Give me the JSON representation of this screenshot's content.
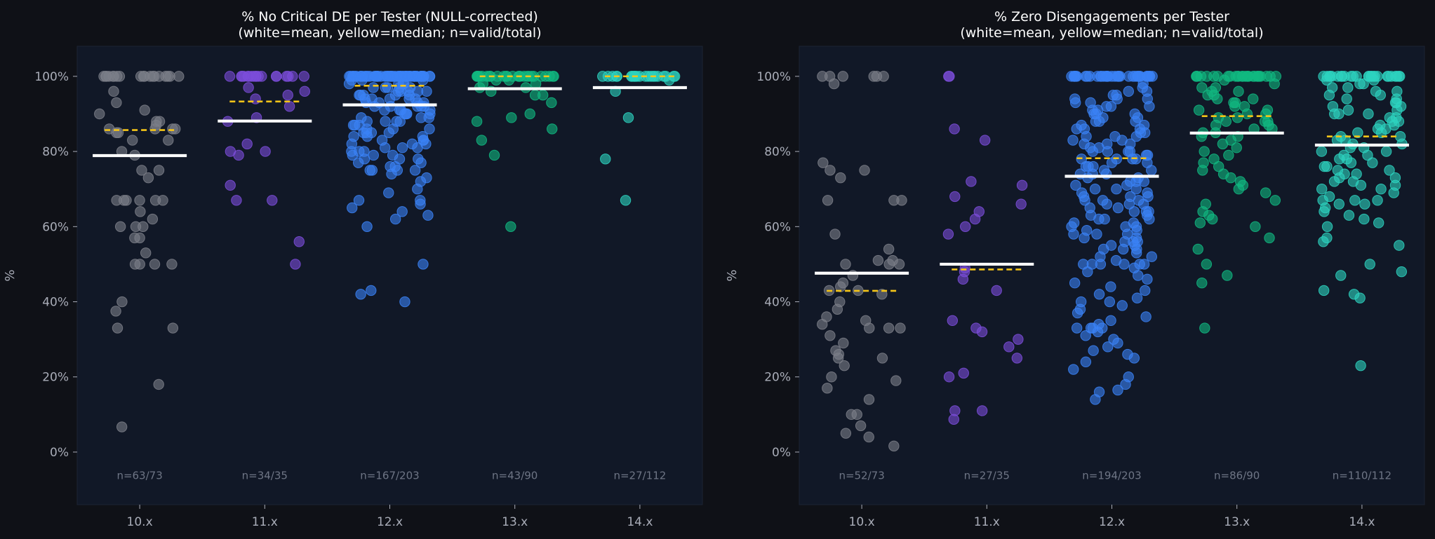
{
  "colors": {
    "page_bg": "#0f1117",
    "plot_bg": "#111827",
    "mean": "#ffffff",
    "median": "#f5c518",
    "text": "#a9adb8",
    "n_text": "#6e7585",
    "groups": [
      "#7c7f88",
      "#7c4ddb",
      "#3b82f6",
      "#10b981",
      "#2dd4bf"
    ]
  },
  "chart_data": [
    {
      "type": "scatter",
      "title": "% No Critical DE per Tester (NULL-corrected)",
      "subtitle": "(white=mean, yellow=median; n=valid/total)",
      "ylabel": "%",
      "ylim": [
        -14,
        108
      ],
      "yticks": [
        0,
        20,
        40,
        60,
        80,
        100
      ],
      "ytick_labels": [
        "0%",
        "20%",
        "40%",
        "60%",
        "80%",
        "100%"
      ],
      "categories": [
        "10.x",
        "11.x",
        "12.x",
        "13.x",
        "14.x"
      ],
      "groups": [
        {
          "name": "10.x",
          "n_label": "n=63/73",
          "valid": 63,
          "mean": 78.9,
          "median": 85.7,
          "values": [
            100,
            100,
            100,
            100,
            100,
            100,
            100,
            100,
            100,
            100,
            100,
            100,
            100,
            100,
            100,
            100,
            100,
            100,
            100,
            96,
            93,
            91,
            90,
            88,
            87,
            86,
            86,
            86,
            85,
            85,
            83,
            83,
            80,
            79,
            75,
            75,
            73,
            67,
            67,
            67,
            67,
            67,
            67,
            64,
            62,
            60,
            60,
            60,
            57,
            57,
            53,
            50,
            50,
            50,
            50,
            40,
            37.5,
            33,
            33,
            18,
            6.7,
            86,
            88
          ]
        },
        {
          "name": "11.x",
          "n_label": "n=34/35",
          "valid": 34,
          "mean": 88.1,
          "median": 93.3,
          "values": [
            100,
            100,
            100,
            100,
            100,
            100,
            100,
            100,
            100,
            100,
            100,
            100,
            100,
            100,
            100,
            100,
            100,
            100,
            97,
            96,
            95,
            94,
            92,
            89,
            88,
            82,
            80,
            80,
            79,
            71,
            67,
            67,
            56,
            50
          ]
        },
        {
          "name": "12.x",
          "n_label": "n=167/203",
          "valid": 167,
          "mean": 92.4,
          "median": 97.5,
          "values": [
            100,
            100,
            100,
            100,
            100,
            100,
            100,
            100,
            100,
            100,
            100,
            100,
            100,
            100,
            100,
            100,
            100,
            100,
            100,
            100,
            100,
            100,
            100,
            100,
            100,
            100,
            100,
            100,
            100,
            100,
            100,
            100,
            100,
            100,
            100,
            100,
            100,
            100,
            100,
            100,
            100,
            100,
            100,
            100,
            100,
            100,
            100,
            100,
            100,
            100,
            100,
            100,
            100,
            100,
            100,
            100,
            100,
            100,
            100,
            100,
            99,
            99,
            98,
            98,
            98,
            97,
            97,
            97,
            97,
            96,
            96,
            96,
            96,
            95,
            95,
            95,
            95,
            94,
            94,
            94,
            94,
            93,
            93,
            93,
            92,
            92,
            92,
            92,
            91,
            91,
            91,
            90,
            90,
            90,
            89,
            89,
            88,
            88,
            88,
            87,
            87,
            86,
            86,
            85,
            85,
            85,
            84,
            84,
            83,
            83,
            82,
            82,
            81,
            81,
            80,
            80,
            79,
            79,
            78,
            78,
            77,
            76,
            75,
            75,
            75,
            74,
            73,
            72,
            70,
            69,
            67,
            67,
            66,
            65,
            64,
            63,
            62,
            60,
            50,
            43,
            42,
            40,
            99,
            98,
            97,
            96,
            95,
            94,
            93,
            92,
            91,
            90,
            89,
            88,
            87,
            86,
            85,
            84,
            83,
            82,
            81,
            80,
            79,
            78,
            77,
            76,
            75
          ]
        },
        {
          "name": "13.x",
          "n_label": "n=43/90",
          "valid": 43,
          "mean": 96.7,
          "median": 100,
          "values": [
            100,
            100,
            100,
            100,
            100,
            100,
            100,
            100,
            100,
            100,
            100,
            100,
            100,
            100,
            100,
            100,
            100,
            100,
            100,
            100,
            100,
            100,
            100,
            100,
            100,
            100,
            99,
            99,
            98,
            98,
            97,
            97,
            96,
            95,
            95,
            93,
            90,
            89,
            88,
            86,
            83,
            79,
            60
          ]
        },
        {
          "name": "14.x",
          "n_label": "n=27/112",
          "valid": 27,
          "mean": 97.0,
          "median": 100,
          "values": [
            100,
            100,
            100,
            100,
            100,
            100,
            100,
            100,
            100,
            100,
            100,
            100,
            100,
            100,
            100,
            100,
            100,
            100,
            100,
            100,
            100,
            99,
            96,
            89,
            78,
            67,
            100
          ]
        }
      ]
    },
    {
      "type": "scatter",
      "title": "% Zero Disengagements per Tester",
      "subtitle": "(white=mean, yellow=median; n=valid/total)",
      "ylabel": "%",
      "ylim": [
        -14,
        108
      ],
      "yticks": [
        0,
        20,
        40,
        60,
        80,
        100
      ],
      "ytick_labels": [
        "0%",
        "20%",
        "40%",
        "60%",
        "80%",
        "100%"
      ],
      "categories": [
        "10.x",
        "11.x",
        "12.x",
        "13.x",
        "14.x"
      ],
      "groups": [
        {
          "name": "10.x",
          "n_label": "n=52/73",
          "valid": 52,
          "mean": 47.6,
          "median": 42.9,
          "values": [
            100,
            100,
            100,
            100,
            100,
            100,
            98,
            77,
            75,
            75,
            73,
            67,
            67,
            67,
            58,
            54,
            51,
            51,
            50,
            50,
            50,
            47,
            44,
            43,
            43,
            42,
            40,
            38,
            36,
            35,
            34,
            33,
            33,
            33,
            31,
            29,
            27,
            26,
            25,
            25,
            23,
            20,
            19,
            17,
            14,
            10,
            10,
            7,
            5,
            4,
            1.6,
            45
          ]
        },
        {
          "name": "11.x",
          "n_label": "n=27/35",
          "valid": 27,
          "mean": 50.0,
          "median": 48.6,
          "values": [
            100,
            100,
            86,
            83,
            72,
            71,
            68,
            66,
            62,
            60,
            58,
            49,
            48,
            46,
            43,
            35,
            33,
            32,
            30,
            28,
            25,
            21,
            20,
            11,
            11,
            8.7,
            64
          ]
        },
        {
          "name": "12.x",
          "n_label": "n=194/203",
          "valid": 194,
          "mean": 73.4,
          "median": 78.2,
          "values": [
            100,
            100,
            100,
            100,
            100,
            100,
            100,
            100,
            100,
            100,
            100,
            100,
            100,
            100,
            100,
            100,
            100,
            100,
            100,
            100,
            100,
            100,
            100,
            100,
            100,
            100,
            100,
            100,
            100,
            100,
            100,
            100,
            97,
            96,
            95,
            95,
            94,
            94,
            93,
            93,
            92,
            92,
            91,
            91,
            90,
            90,
            89,
            89,
            88,
            88,
            87,
            87,
            86,
            86,
            85,
            85,
            84,
            84,
            83,
            83,
            82,
            82,
            81,
            81,
            80,
            80,
            80,
            79,
            79,
            78,
            78,
            78,
            77,
            77,
            76,
            76,
            75,
            75,
            74,
            74,
            73,
            73,
            72,
            72,
            71,
            71,
            70,
            70,
            69,
            69,
            68,
            68,
            67,
            67,
            67,
            66,
            66,
            65,
            65,
            64,
            64,
            63,
            63,
            62,
            62,
            61,
            61,
            60,
            60,
            59,
            59,
            58,
            58,
            57,
            57,
            56,
            56,
            55,
            55,
            54,
            54,
            53,
            52,
            51,
            50,
            50,
            50,
            50,
            50,
            49,
            48,
            47,
            46,
            45,
            44,
            43,
            42,
            41,
            40,
            40,
            39,
            38,
            37,
            36,
            35,
            34,
            33,
            33,
            33,
            33,
            32,
            31,
            30,
            29,
            28,
            27,
            26,
            25,
            24,
            22,
            20,
            18,
            16.5,
            16,
            14,
            100,
            100,
            100,
            100,
            100,
            98,
            96,
            94,
            92,
            90,
            88,
            86,
            84,
            82,
            80,
            78,
            76,
            74,
            72,
            70,
            68,
            66,
            64,
            62,
            60,
            58,
            56,
            54,
            52,
            50
          ]
        },
        {
          "name": "13.x",
          "n_label": "n=86/90",
          "valid": 86,
          "mean": 84.9,
          "median": 89.4,
          "values": [
            100,
            100,
            100,
            100,
            100,
            100,
            100,
            100,
            100,
            100,
            100,
            100,
            100,
            100,
            100,
            100,
            100,
            100,
            100,
            100,
            100,
            100,
            100,
            100,
            100,
            100,
            100,
            99,
            98,
            97,
            97,
            96,
            96,
            95,
            95,
            94,
            94,
            93,
            93,
            92,
            92,
            91,
            91,
            90,
            90,
            89,
            89,
            88,
            88,
            87,
            87,
            86,
            86,
            85,
            85,
            84,
            84,
            83,
            82,
            81,
            80,
            79,
            78,
            77,
            76,
            75,
            74,
            73,
            72,
            71,
            70,
            69,
            67,
            66,
            64,
            63,
            62,
            61,
            60,
            57,
            54,
            50,
            47,
            45,
            33,
            88
          ]
        },
        {
          "name": "14.x",
          "n_label": "n=110/112",
          "valid": 110,
          "mean": 81.7,
          "median": 84.0,
          "values": [
            100,
            100,
            100,
            100,
            100,
            100,
            100,
            100,
            100,
            100,
            100,
            100,
            100,
            100,
            100,
            100,
            100,
            100,
            100,
            100,
            100,
            100,
            100,
            99,
            98,
            97,
            96,
            95,
            94,
            93,
            92,
            91,
            90,
            90,
            89,
            89,
            88,
            88,
            87,
            87,
            86,
            86,
            85,
            85,
            84,
            84,
            83,
            83,
            82,
            82,
            81,
            81,
            80,
            80,
            79,
            79,
            78,
            78,
            77,
            77,
            76,
            76,
            75,
            75,
            74,
            74,
            73,
            73,
            72,
            72,
            71,
            71,
            70,
            70,
            69,
            68,
            67,
            67,
            67,
            66,
            66,
            65,
            64,
            63,
            62,
            61,
            60,
            57,
            56,
            55,
            50,
            48,
            47,
            43,
            42,
            41,
            23,
            100,
            100,
            100,
            99,
            98,
            97,
            96,
            95,
            94,
            93,
            92,
            91,
            90
          ]
        }
      ]
    }
  ]
}
